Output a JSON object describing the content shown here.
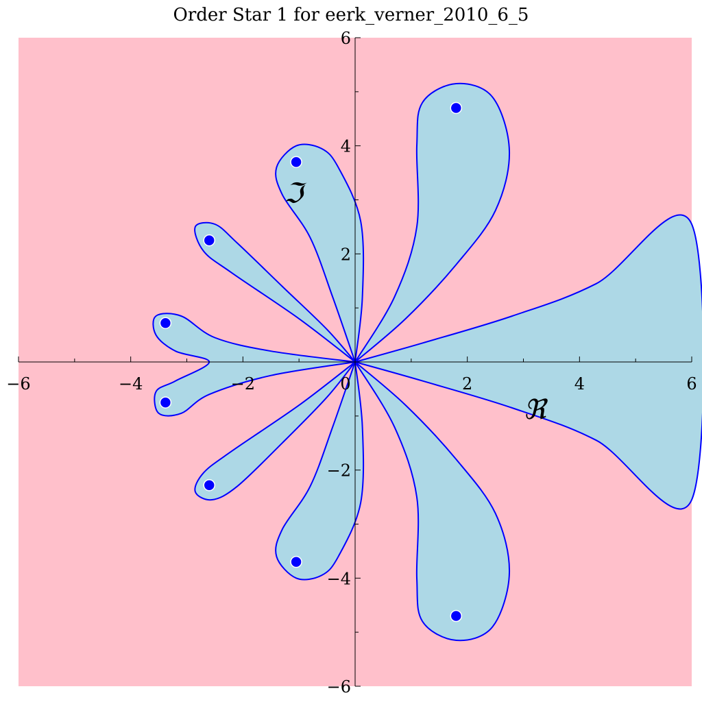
{
  "chart_data": {
    "type": "contour-region",
    "title": "Order Star 1 for eerk_verner_2010_6_5",
    "xlabel": "ℜ",
    "ylabel": "ℑ",
    "xlim": [
      -6,
      6
    ],
    "ylim": [
      -6,
      6
    ],
    "x_ticks": [
      -6,
      -4,
      -2,
      0,
      2,
      4,
      6
    ],
    "y_ticks": [
      -6,
      -4,
      -2,
      2,
      4,
      6
    ],
    "x_tick_labels": [
      "−6",
      "−4",
      "−2",
      "0",
      "2",
      "4",
      "6"
    ],
    "y_tick_labels": [
      "−6",
      "−4",
      "−2",
      "2",
      "4",
      "6"
    ],
    "grid": false,
    "legend": "none",
    "colors": {
      "background_region": "#ffc0cb",
      "lobe_region": "#add8e6",
      "contour_line": "#0000ff",
      "pole_marker": "#0000ff",
      "axis": "#000000"
    },
    "poles": [
      {
        "x": 1.8,
        "y": 4.7
      },
      {
        "x": 1.8,
        "y": -4.7
      },
      {
        "x": -1.05,
        "y": 3.7
      },
      {
        "x": -1.05,
        "y": -3.7
      },
      {
        "x": -2.6,
        "y": 2.25
      },
      {
        "x": -2.6,
        "y": -2.28
      },
      {
        "x": -3.38,
        "y": 0.72
      },
      {
        "x": -3.38,
        "y": -0.75
      }
    ],
    "lobes": [
      {
        "name": "right-sector",
        "points": [
          [
            0,
            0
          ],
          [
            1.2,
            0.35
          ],
          [
            2.8,
            0.85
          ],
          [
            4.3,
            1.45
          ],
          [
            6,
            2.55
          ],
          [
            6,
            -2.55
          ],
          [
            4.3,
            -1.45
          ],
          [
            2.8,
            -0.85
          ],
          [
            1.2,
            -0.35
          ],
          [
            0,
            0
          ]
        ]
      },
      {
        "name": "lobe-upper-1",
        "points": [
          [
            0,
            0
          ],
          [
            0.7,
            1.2
          ],
          [
            1.1,
            2.5
          ],
          [
            1.1,
            4.0
          ],
          [
            1.2,
            4.8
          ],
          [
            1.8,
            5.15
          ],
          [
            2.45,
            4.9
          ],
          [
            2.75,
            3.9
          ],
          [
            2.5,
            2.8
          ],
          [
            1.8,
            1.8
          ],
          [
            0.9,
            0.8
          ],
          [
            0,
            0
          ]
        ]
      },
      {
        "name": "lobe-lower-1",
        "points": [
          [
            0,
            0
          ],
          [
            0.7,
            -1.2
          ],
          [
            1.1,
            -2.5
          ],
          [
            1.1,
            -4.0
          ],
          [
            1.2,
            -4.8
          ],
          [
            1.8,
            -5.15
          ],
          [
            2.45,
            -4.9
          ],
          [
            2.75,
            -3.9
          ],
          [
            2.5,
            -2.8
          ],
          [
            1.8,
            -1.8
          ],
          [
            0.9,
            -0.8
          ],
          [
            0,
            0
          ]
        ]
      },
      {
        "name": "lobe-upper-2",
        "points": [
          [
            0,
            0
          ],
          [
            0.13,
            1.2
          ],
          [
            0.1,
            2.6
          ],
          [
            -0.3,
            3.6
          ],
          [
            -0.6,
            3.95
          ],
          [
            -1.05,
            4.0
          ],
          [
            -1.4,
            3.6
          ],
          [
            -1.3,
            3.1
          ],
          [
            -0.8,
            2.3
          ],
          [
            -0.4,
            1.2
          ],
          [
            0,
            0
          ]
        ]
      },
      {
        "name": "lobe-lower-2",
        "points": [
          [
            0,
            0
          ],
          [
            0.13,
            -1.2
          ],
          [
            0.1,
            -2.6
          ],
          [
            -0.3,
            -3.6
          ],
          [
            -0.6,
            -3.95
          ],
          [
            -1.05,
            -4.0
          ],
          [
            -1.4,
            -3.6
          ],
          [
            -1.3,
            -3.1
          ],
          [
            -0.8,
            -2.3
          ],
          [
            -0.4,
            -1.2
          ],
          [
            0,
            0
          ]
        ]
      },
      {
        "name": "lobe-upper-3",
        "points": [
          [
            0,
            0
          ],
          [
            -1.0,
            0.8
          ],
          [
            -2.2,
            1.65
          ],
          [
            -2.7,
            2.05
          ],
          [
            -2.85,
            2.5
          ],
          [
            -2.5,
            2.55
          ],
          [
            -2.1,
            2.2
          ],
          [
            -1.3,
            1.4
          ],
          [
            -0.5,
            0.6
          ],
          [
            0,
            0
          ]
        ]
      },
      {
        "name": "lobe-lower-3",
        "points": [
          [
            0,
            0
          ],
          [
            -1.0,
            -0.8
          ],
          [
            -2.2,
            -1.65
          ],
          [
            -2.7,
            -2.05
          ],
          [
            -2.85,
            -2.4
          ],
          [
            -2.55,
            -2.55
          ],
          [
            -2.1,
            -2.3
          ],
          [
            -1.3,
            -1.5
          ],
          [
            -0.5,
            -0.65
          ],
          [
            0,
            0
          ]
        ]
      },
      {
        "name": "lobe-left",
        "points": [
          [
            0,
            0
          ],
          [
            -1.5,
            0.2
          ],
          [
            -2.5,
            0.45
          ],
          [
            -3.1,
            0.85
          ],
          [
            -3.55,
            0.85
          ],
          [
            -3.55,
            0.5
          ],
          [
            -3.2,
            0.2
          ],
          [
            -2.6,
            0.0
          ],
          [
            -3.2,
            -0.35
          ],
          [
            -3.55,
            -0.55
          ],
          [
            -3.5,
            -0.95
          ],
          [
            -3.1,
            -0.95
          ],
          [
            -2.6,
            -0.6
          ],
          [
            -1.5,
            -0.25
          ],
          [
            0,
            0
          ]
        ]
      }
    ]
  }
}
